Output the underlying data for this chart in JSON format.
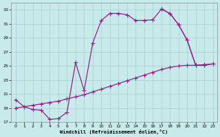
{
  "xlabel": "Windchill (Refroidissement éolien,°C)",
  "line_color": "#882288",
  "bg_color": "#c8eaea",
  "grid_color": "#b0d8d8",
  "ylim": [
    17,
    34
  ],
  "xlim": [
    -0.5,
    23.5
  ],
  "yticks": [
    17,
    19,
    21,
    23,
    25,
    27,
    29,
    31,
    33
  ],
  "xticks": [
    0,
    1,
    2,
    3,
    4,
    5,
    6,
    7,
    8,
    9,
    10,
    11,
    12,
    13,
    14,
    15,
    16,
    17,
    18,
    19,
    20,
    21,
    22,
    23
  ],
  "curve_upper_x": [
    0,
    1,
    2,
    3,
    4,
    5,
    6,
    7,
    8,
    9,
    10,
    11,
    12,
    13,
    14,
    15,
    16,
    17,
    18,
    19,
    20,
    21,
    22
  ],
  "curve_upper_y": [
    20.2,
    19.2,
    18.8,
    18.7,
    17.4,
    17.5,
    18.4,
    25.5,
    21.5,
    28.3,
    31.5,
    32.5,
    32.5,
    32.3,
    31.5,
    31.5,
    31.6,
    33.1,
    32.5,
    30.9,
    28.7,
    25.1,
    25.1
  ],
  "curve_diag_x": [
    0,
    1,
    2,
    3,
    4,
    5,
    6,
    7,
    8,
    9,
    10,
    11,
    12,
    13,
    14,
    15,
    16,
    17,
    18,
    19,
    20,
    21,
    22,
    23
  ],
  "curve_diag_y": [
    19.0,
    19.2,
    19.4,
    19.6,
    19.8,
    20.0,
    20.3,
    20.6,
    20.9,
    21.3,
    21.7,
    22.1,
    22.5,
    22.9,
    23.3,
    23.7,
    24.1,
    24.5,
    24.8,
    25.0,
    25.1,
    25.1,
    25.2,
    25.3
  ],
  "curve_right_x": [
    17,
    18,
    19,
    20,
    21,
    22,
    23
  ],
  "curve_right_y": [
    33.1,
    32.5,
    30.9,
    28.7,
    25.1,
    25.1,
    25.3
  ]
}
